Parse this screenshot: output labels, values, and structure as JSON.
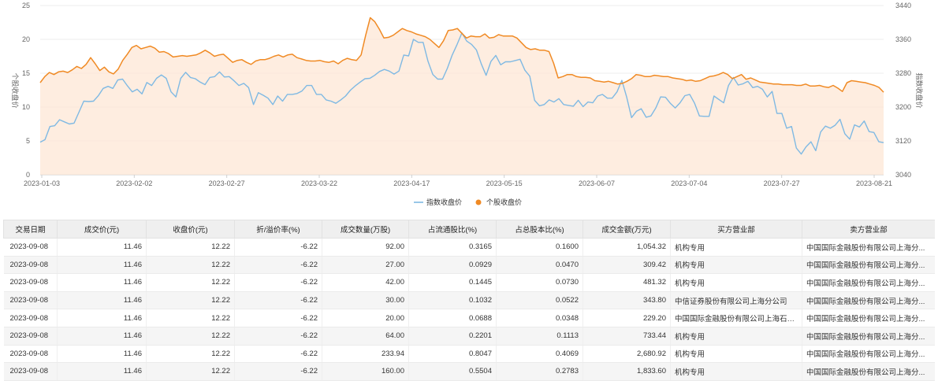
{
  "chart_data": {
    "type": "line",
    "x_ticks": [
      "2023-01-03",
      "2023-02-02",
      "2023-02-27",
      "2023-03-22",
      "2023-04-17",
      "2023-05-15",
      "2023-06-07",
      "2023-07-04",
      "2023-07-27",
      "2023-08-21"
    ],
    "left_axis": {
      "label": "个股收盘价",
      "ticks": [
        0,
        5,
        10,
        15,
        20,
        25
      ],
      "ylim": [
        0,
        25
      ]
    },
    "right_axis": {
      "label": "指数收盘价",
      "ticks": [
        3040,
        3120,
        3200,
        3280,
        3360,
        3440
      ],
      "ylim": [
        3040,
        3440
      ]
    },
    "grid": true,
    "legend_position": "bottom",
    "colors": {
      "index": "#7fb9e3",
      "stock": "#f08a24",
      "stock_fill": "#fde7d6"
    },
    "series": [
      {
        "name": "指数收盘价",
        "axis": "right",
        "values": [
          3117,
          3123,
          3154,
          3156,
          3170,
          3165,
          3160,
          3162,
          3188,
          3214,
          3213,
          3214,
          3227,
          3244,
          3249,
          3244,
          3264,
          3266,
          3250,
          3236,
          3242,
          3231,
          3258,
          3251,
          3268,
          3276,
          3268,
          3236,
          3224,
          3268,
          3282,
          3270,
          3267,
          3259,
          3253,
          3270,
          3272,
          3283,
          3271,
          3272,
          3262,
          3251,
          3256,
          3246,
          3206,
          3234,
          3228,
          3221,
          3206,
          3226,
          3214,
          3230,
          3230,
          3232,
          3238,
          3251,
          3251,
          3230,
          3230,
          3217,
          3214,
          3209,
          3217,
          3226,
          3240,
          3250,
          3259,
          3267,
          3268,
          3275,
          3284,
          3289,
          3285,
          3278,
          3285,
          3323,
          3321,
          3360,
          3353,
          3353,
          3308,
          3277,
          3266,
          3266,
          3292,
          3323,
          3348,
          3375,
          3356,
          3348,
          3335,
          3302,
          3275,
          3308,
          3322,
          3300,
          3307,
          3307,
          3310,
          3313,
          3287,
          3273,
          3216,
          3203,
          3206,
          3217,
          3212,
          3220,
          3206,
          3204,
          3202,
          3216,
          3201,
          3212,
          3210,
          3226,
          3230,
          3221,
          3221,
          3236,
          3263,
          3223,
          3175,
          3190,
          3196,
          3176,
          3179,
          3198,
          3224,
          3223,
          3209,
          3198,
          3210,
          3227,
          3230,
          3209,
          3179,
          3178,
          3178,
          3226,
          3218,
          3210,
          3251,
          3270,
          3252,
          3255,
          3261,
          3246,
          3249,
          3242,
          3224,
          3237,
          3185,
          3185,
          3150,
          3154,
          3103,
          3089,
          3106,
          3118,
          3097,
          3141,
          3155,
          3150,
          3157,
          3171,
          3137,
          3124,
          3158,
          3153,
          3167,
          3142,
          3140,
          3118,
          3116
        ]
      },
      {
        "name": "个股收盘价",
        "axis": "left",
        "values": [
          13.6,
          14.5,
          15.1,
          14.8,
          15.2,
          15.3,
          15.1,
          15.5,
          16.0,
          15.7,
          16.3,
          17.3,
          16.4,
          15.4,
          15.9,
          15.2,
          14.9,
          15.6,
          16.9,
          17.8,
          18.8,
          19.1,
          18.6,
          18.8,
          19.0,
          18.7,
          18.1,
          18.2,
          17.9,
          17.4,
          17.5,
          17.6,
          17.5,
          17.6,
          17.7,
          18.0,
          18.4,
          18.0,
          17.5,
          17.7,
          17.8,
          17.2,
          16.6,
          16.9,
          17.0,
          16.6,
          16.3,
          16.8,
          17.0,
          17.0,
          17.2,
          17.5,
          17.7,
          17.4,
          17.7,
          17.8,
          17.3,
          17.1,
          16.9,
          16.8,
          16.8,
          16.9,
          16.7,
          16.6,
          16.8,
          16.4,
          16.9,
          17.2,
          17.0,
          16.9,
          17.7,
          20.6,
          23.2,
          22.6,
          21.5,
          20.2,
          20.3,
          20.6,
          21.1,
          21.6,
          21.3,
          21.1,
          20.8,
          20.6,
          20.4,
          20.0,
          19.4,
          18.8,
          19.8,
          21.3,
          21.4,
          21.6,
          20.9,
          20.2,
          20.5,
          20.4,
          20.4,
          20.8,
          20.2,
          20.3,
          20.7,
          20.5,
          20.5,
          20.5,
          20.2,
          19.5,
          18.8,
          18.5,
          18.6,
          18.4,
          18.4,
          18.2,
          16.5,
          14.3,
          14.5,
          14.8,
          14.8,
          14.5,
          14.4,
          14.4,
          14.3,
          13.9,
          13.8,
          13.7,
          13.8,
          13.6,
          13.4,
          13.5,
          13.8,
          14.2,
          14.8,
          14.7,
          14.5,
          14.5,
          14.7,
          14.6,
          14.5,
          14.5,
          14.3,
          14.2,
          14.1,
          13.9,
          14.0,
          13.8,
          13.9,
          14.2,
          14.5,
          14.6,
          14.8,
          15.1,
          14.8,
          14.2,
          14.5,
          14.8,
          14.1,
          14.3,
          14.0,
          13.7,
          13.6,
          13.5,
          13.4,
          13.4,
          13.3,
          13.3,
          13.3,
          13.2,
          13.2,
          13.4,
          13.1,
          13.1,
          13.2,
          13.0,
          12.9,
          13.2,
          12.8,
          12.3,
          13.6,
          13.9,
          13.8,
          13.7,
          13.6,
          13.4,
          13.2,
          12.9,
          12.2
        ]
      }
    ]
  },
  "legend": [
    {
      "label": "指数收盘价",
      "color": "#7fb9e3"
    },
    {
      "label": "个股收盘价",
      "color": "#f08a24"
    }
  ],
  "table": {
    "headers": [
      "交易日期",
      "成交价(元)",
      "收盘价(元)",
      "折/溢价率(%)",
      "成交数量(万股)",
      "占流通股比(%)",
      "占总股本比(%)",
      "成交金额(万元)",
      "买方营业部",
      "卖方营业部"
    ],
    "rows": [
      [
        "2023-09-08",
        "11.46",
        "12.22",
        "-6.22",
        "92.00",
        "0.3165",
        "0.1600",
        "1,054.32",
        "机构专用",
        "中国国际金融股份有限公司上海分..."
      ],
      [
        "2023-09-08",
        "11.46",
        "12.22",
        "-6.22",
        "27.00",
        "0.0929",
        "0.0470",
        "309.42",
        "机构专用",
        "中国国际金融股份有限公司上海分..."
      ],
      [
        "2023-09-08",
        "11.46",
        "12.22",
        "-6.22",
        "42.00",
        "0.1445",
        "0.0730",
        "481.32",
        "机构专用",
        "中国国际金融股份有限公司上海分..."
      ],
      [
        "2023-09-08",
        "11.46",
        "12.22",
        "-6.22",
        "30.00",
        "0.1032",
        "0.0522",
        "343.80",
        "中信证券股份有限公司上海分公司",
        "中国国际金融股份有限公司上海分..."
      ],
      [
        "2023-09-08",
        "11.46",
        "12.22",
        "-6.22",
        "20.00",
        "0.0688",
        "0.0348",
        "229.20",
        "中国国际金融股份有限公司上海石化证...",
        "中国国际金融股份有限公司上海分..."
      ],
      [
        "2023-09-08",
        "11.46",
        "12.22",
        "-6.22",
        "64.00",
        "0.2201",
        "0.1113",
        "733.44",
        "机构专用",
        "中国国际金融股份有限公司上海分..."
      ],
      [
        "2023-09-08",
        "11.46",
        "12.22",
        "-6.22",
        "233.94",
        "0.8047",
        "0.4069",
        "2,680.92",
        "机构专用",
        "中国国际金融股份有限公司上海分..."
      ],
      [
        "2023-09-08",
        "11.46",
        "12.22",
        "-6.22",
        "160.00",
        "0.5504",
        "0.2783",
        "1,833.60",
        "机构专用",
        "中国国际金融股份有限公司上海分..."
      ]
    ]
  }
}
